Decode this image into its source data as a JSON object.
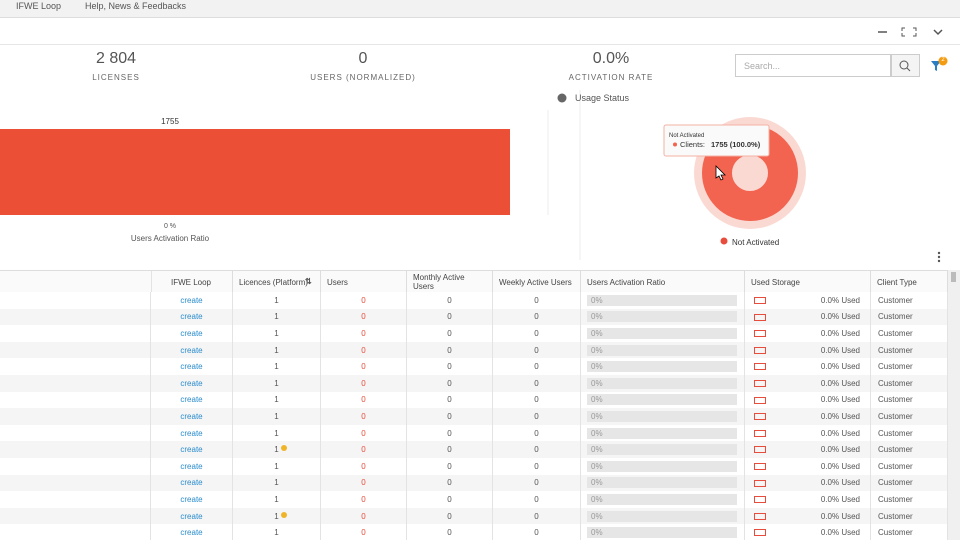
{
  "nav": [
    "IFWE Loop",
    "Help, News & Feedbacks"
  ],
  "stats": [
    {
      "value": "2 804",
      "label": "LICENSES"
    },
    {
      "value": "0",
      "label": "USERS (NORMALIZED)"
    },
    {
      "value": "0.0%",
      "label": "ACTIVATION RATE"
    }
  ],
  "search": {
    "placeholder": "Search...",
    "filter_count": "2"
  },
  "bar_chart": {
    "value": 1755,
    "axis_label": "0 %",
    "caption": "Users Activation Ratio",
    "color": "#eb4f35"
  },
  "usage": {
    "title": "Usage Status",
    "tooltip_title": "Not Activated",
    "tooltip_label": "Clients:",
    "tooltip_value": "1755 (100.0%)",
    "legend": "Not Activated",
    "value": 1755,
    "color": "#f26450"
  },
  "table": {
    "headers": [
      "IFWE Loop",
      "Licences (Platform)",
      "Users",
      "Monthly Active Users",
      "Weekly Active Users",
      "Users Activation Ratio",
      "Used Storage",
      "Client Type"
    ],
    "rows": [
      {
        "cells": [
          "create",
          "1",
          "0",
          "0",
          "0",
          "0%",
          "0.0% Used",
          "Customer"
        ]
      },
      {
        "cells": [
          "create",
          "1",
          "0",
          "0",
          "0",
          "0%",
          "0.0% Used",
          "Customer"
        ]
      },
      {
        "cells": [
          "create",
          "1",
          "0",
          "0",
          "0",
          "0%",
          "0.0% Used",
          "Customer"
        ]
      },
      {
        "cells": [
          "create",
          "1",
          "0",
          "0",
          "0",
          "0%",
          "0.0% Used",
          "Customer"
        ]
      },
      {
        "cells": [
          "create",
          "1",
          "0",
          "0",
          "0",
          "0%",
          "0.0% Used",
          "Customer"
        ]
      },
      {
        "cells": [
          "create",
          "1",
          "0",
          "0",
          "0",
          "0%",
          "0.0% Used",
          "Customer"
        ]
      },
      {
        "cells": [
          "create",
          "1",
          "0",
          "0",
          "0",
          "0%",
          "0.0% Used",
          "Customer"
        ]
      },
      {
        "cells": [
          "create",
          "1",
          "0",
          "0",
          "0",
          "0%",
          "0.0% Used",
          "Customer"
        ]
      },
      {
        "cells": [
          "create",
          "1",
          "0",
          "0",
          "0",
          "0%",
          "0.0% Used",
          "Customer"
        ]
      },
      {
        "cells": [
          "create",
          "1",
          "0",
          "0",
          "0",
          "0%",
          "0.0% Used",
          "Customer"
        ],
        "icon": true
      },
      {
        "cells": [
          "create",
          "1",
          "0",
          "0",
          "0",
          "0%",
          "0.0% Used",
          "Customer"
        ]
      },
      {
        "cells": [
          "create",
          "1",
          "0",
          "0",
          "0",
          "0%",
          "0.0% Used",
          "Customer"
        ]
      },
      {
        "cells": [
          "create",
          "1",
          "0",
          "0",
          "0",
          "0%",
          "0.0% Used",
          "Customer"
        ]
      },
      {
        "cells": [
          "create",
          "1",
          "0",
          "0",
          "0",
          "0%",
          "0.0% Used",
          "Customer"
        ],
        "icon": true
      },
      {
        "cells": [
          "create",
          "1",
          "0",
          "0",
          "0",
          "0%",
          "0.0% Used",
          "Customer"
        ]
      }
    ]
  }
}
